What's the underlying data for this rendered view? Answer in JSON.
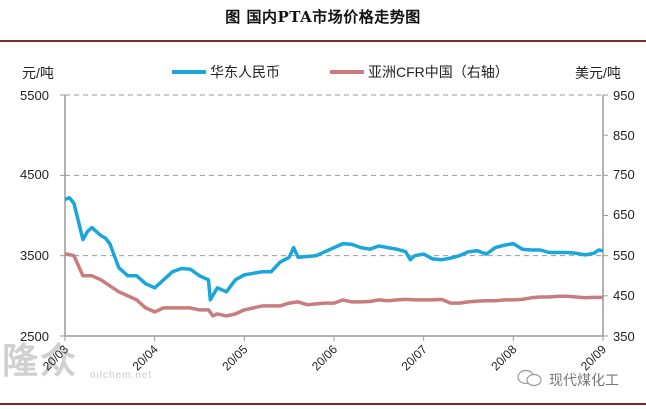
{
  "title": "图  国内PTA市场价格走势图",
  "units": {
    "left": "元/吨",
    "right": "美元/吨"
  },
  "legend": [
    {
      "label": "华东人民币",
      "color": "#1aa6dc"
    },
    {
      "label": "亚洲CFR中国（右轴）",
      "color": "#c97c7e"
    }
  ],
  "watermark": {
    "main": "隆众",
    "sub": "oilchem.net"
  },
  "source": {
    "icon": "wechat-icon",
    "label": "现代煤化工"
  },
  "colors": {
    "rule": "#7a2a2a",
    "axis": "#999999",
    "grid": "#999999"
  },
  "chart_data": {
    "type": "line",
    "title": "图  国内PTA市场价格走势图",
    "xlabel": "",
    "ylabel": "元/吨",
    "y2label": "美元/吨",
    "categories": [
      "20/03",
      "20/04",
      "20/05",
      "20/06",
      "20/07",
      "20/08",
      "20/09"
    ],
    "ylim": [
      2500,
      5500
    ],
    "yticks": [
      "5500",
      "4500",
      "3500",
      "2500"
    ],
    "y2lim": [
      350,
      950
    ],
    "y2ticks": [
      "950",
      "850",
      "750",
      "650",
      "550",
      "450",
      "350"
    ],
    "grid": "dashed horizontal at 5500, 4500, 3500",
    "legend_position": "top",
    "series": [
      {
        "name": "华东人民币",
        "axis": "left",
        "x": [
          0,
          0.05,
          0.1,
          0.2,
          0.25,
          0.3,
          0.4,
          0.45,
          0.5,
          0.6,
          0.65,
          0.7,
          0.8,
          0.9,
          1.0,
          1.05,
          1.1,
          1.2,
          1.3,
          1.4,
          1.5,
          1.6,
          1.62,
          1.7,
          1.8,
          1.9,
          2.0,
          2.1,
          2.2,
          2.3,
          2.4,
          2.5,
          2.55,
          2.6,
          2.7,
          2.8,
          2.9,
          3.0,
          3.1,
          3.2,
          3.3,
          3.4,
          3.5,
          3.6,
          3.7,
          3.8,
          3.85,
          3.9,
          4.0,
          4.1,
          4.2,
          4.3,
          4.4,
          4.5,
          4.6,
          4.7,
          4.8,
          4.9,
          5.0,
          5.1,
          5.2,
          5.3,
          5.4,
          5.5,
          5.6,
          5.7,
          5.8,
          5.9,
          5.95,
          6.0
        ],
        "values": [
          4200,
          4220,
          4150,
          3700,
          3800,
          3850,
          3750,
          3720,
          3650,
          3350,
          3300,
          3250,
          3250,
          3150,
          3100,
          3150,
          3200,
          3300,
          3340,
          3330,
          3250,
          3200,
          2950,
          3100,
          3050,
          3200,
          3260,
          3280,
          3300,
          3300,
          3420,
          3480,
          3600,
          3480,
          3490,
          3500,
          3550,
          3600,
          3650,
          3640,
          3600,
          3580,
          3620,
          3600,
          3580,
          3550,
          3450,
          3500,
          3520,
          3460,
          3450,
          3470,
          3500,
          3550,
          3560,
          3520,
          3600,
          3630,
          3650,
          3580,
          3570,
          3570,
          3540,
          3540,
          3540,
          3530,
          3510,
          3530,
          3570,
          3560
        ]
      },
      {
        "name": "亚洲CFR中国（右轴）",
        "axis": "right",
        "x": [
          0,
          0.1,
          0.2,
          0.3,
          0.4,
          0.5,
          0.6,
          0.7,
          0.8,
          0.9,
          1.0,
          1.1,
          1.2,
          1.3,
          1.4,
          1.5,
          1.6,
          1.65,
          1.7,
          1.8,
          1.9,
          2.0,
          2.1,
          2.2,
          2.3,
          2.4,
          2.5,
          2.6,
          2.7,
          2.8,
          2.9,
          3.0,
          3.1,
          3.2,
          3.3,
          3.4,
          3.5,
          3.6,
          3.7,
          3.8,
          3.9,
          4.0,
          4.1,
          4.2,
          4.3,
          4.4,
          4.5,
          4.6,
          4.7,
          4.8,
          4.9,
          5.0,
          5.1,
          5.2,
          5.3,
          5.4,
          5.5,
          5.6,
          5.7,
          5.8,
          5.9,
          6.0
        ],
        "values": [
          555,
          550,
          500,
          500,
          490,
          475,
          460,
          450,
          440,
          420,
          410,
          420,
          420,
          420,
          420,
          415,
          415,
          400,
          405,
          400,
          405,
          415,
          420,
          425,
          425,
          425,
          432,
          435,
          428,
          430,
          432,
          432,
          440,
          435,
          435,
          436,
          440,
          438,
          440,
          441,
          440,
          440,
          440,
          441,
          432,
          432,
          435,
          437,
          438,
          438,
          440,
          440,
          441,
          445,
          447,
          447,
          449,
          449,
          447,
          445,
          446,
          446
        ]
      }
    ]
  }
}
